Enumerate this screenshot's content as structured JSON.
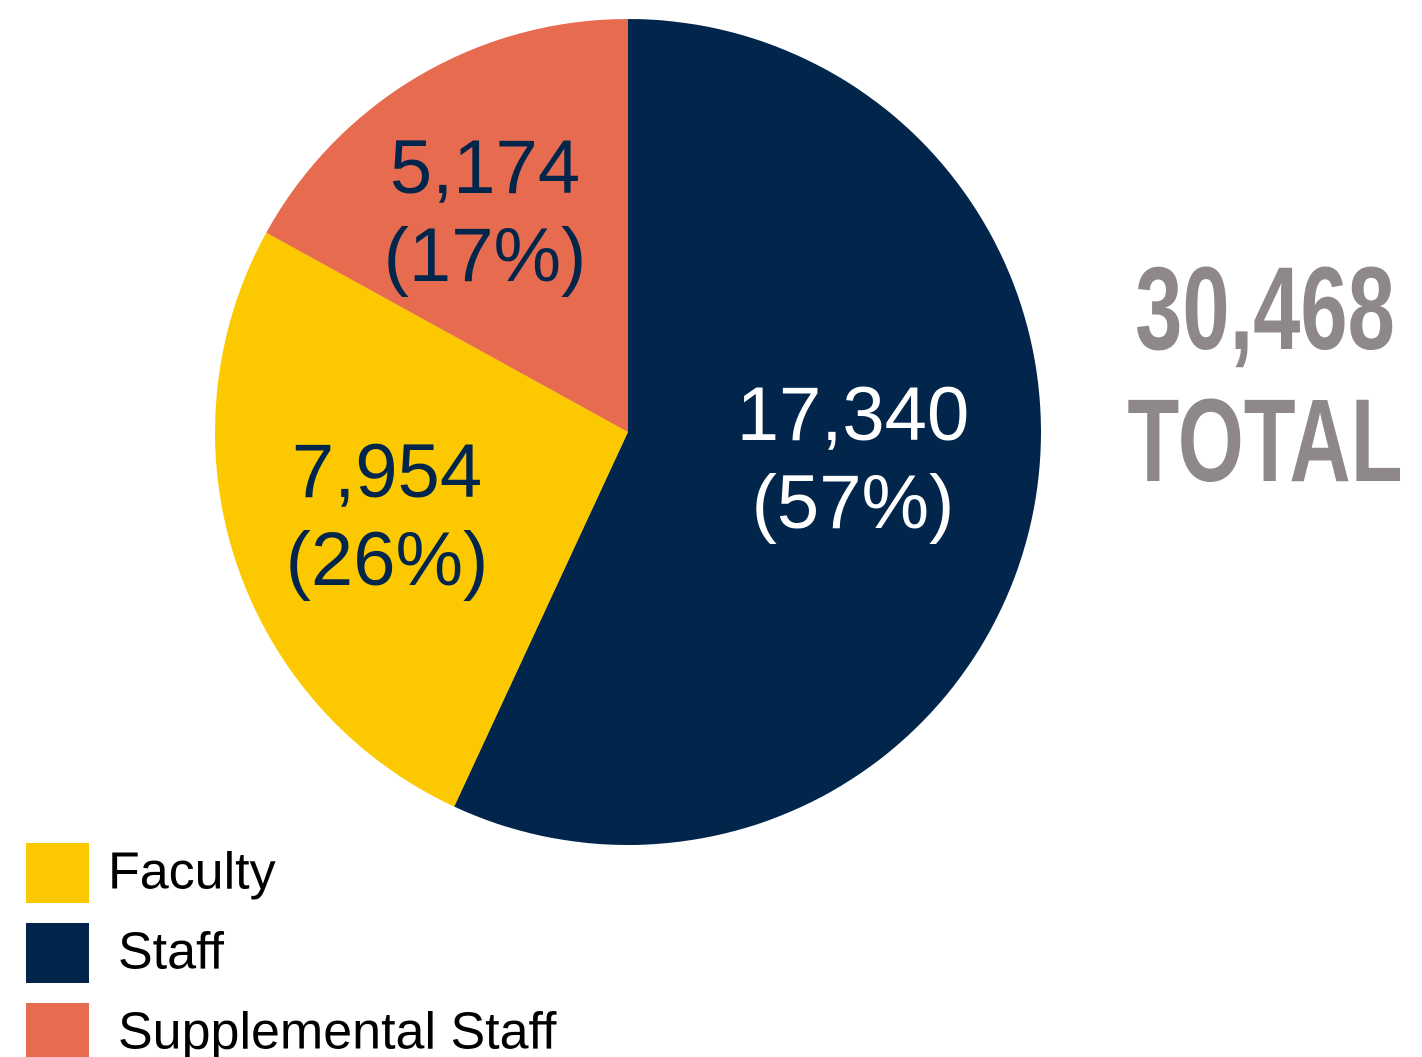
{
  "chart_data": {
    "type": "pie",
    "categories": [
      "Faculty",
      "Staff",
      "Supplemental Staff"
    ],
    "values": [
      7954,
      17340,
      5174
    ],
    "value_labels": [
      "7,954",
      "17,340",
      "5,174"
    ],
    "percents": [
      26,
      57,
      17
    ],
    "percent_labels": [
      "(26%)",
      "(57%)",
      "(17%)"
    ],
    "colors": [
      "#fcc800",
      "#02264b",
      "#e66b4f"
    ],
    "label_colors": [
      "#02264b",
      "#ffffff",
      "#02264b"
    ],
    "annotations": [
      "30,468",
      "TOTAL"
    ],
    "legend": "bottom-left"
  }
}
